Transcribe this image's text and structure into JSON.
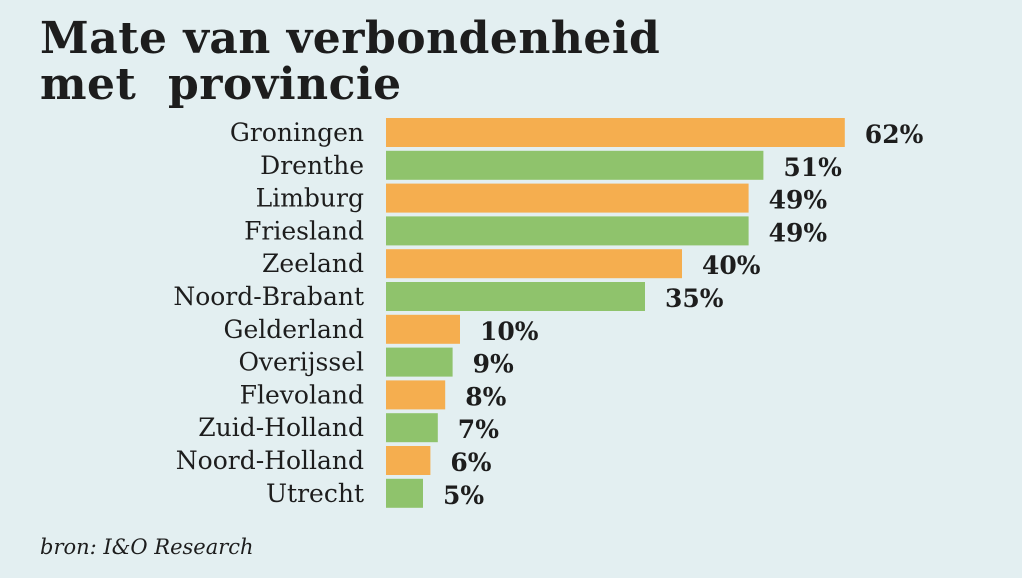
{
  "title_lines": [
    "Mate van verbondenheid",
    "met  provincie"
  ],
  "source": "bron: I&O Research",
  "colors": {
    "background": "#e3eff1",
    "orange": "#f5ae4f",
    "green": "#8fc36c",
    "text": "#1d1d1d"
  },
  "chart_data": {
    "type": "bar",
    "orientation": "horizontal",
    "categories": [
      "Groningen",
      "Drenthe",
      "Limburg",
      "Friesland",
      "Zeeland",
      "Noord-Brabant",
      "Gelderland",
      "Overijssel",
      "Flevoland",
      "Zuid-Holland",
      "Noord-Holland",
      "Utrecht"
    ],
    "values": [
      62,
      51,
      49,
      49,
      40,
      35,
      10,
      9,
      8,
      7,
      6,
      5
    ],
    "value_labels": [
      "62%",
      "51%",
      "49%",
      "49%",
      "40%",
      "35%",
      "10%",
      "9%",
      "8%",
      "7%",
      "6%",
      "5%"
    ],
    "bar_colors": [
      "#f5ae4f",
      "#8fc36c",
      "#f5ae4f",
      "#8fc36c",
      "#f5ae4f",
      "#8fc36c",
      "#f5ae4f",
      "#8fc36c",
      "#f5ae4f",
      "#8fc36c",
      "#f5ae4f",
      "#8fc36c"
    ],
    "unit": "%",
    "xlabel": "",
    "ylabel": "",
    "grid": false,
    "legend": false
  }
}
